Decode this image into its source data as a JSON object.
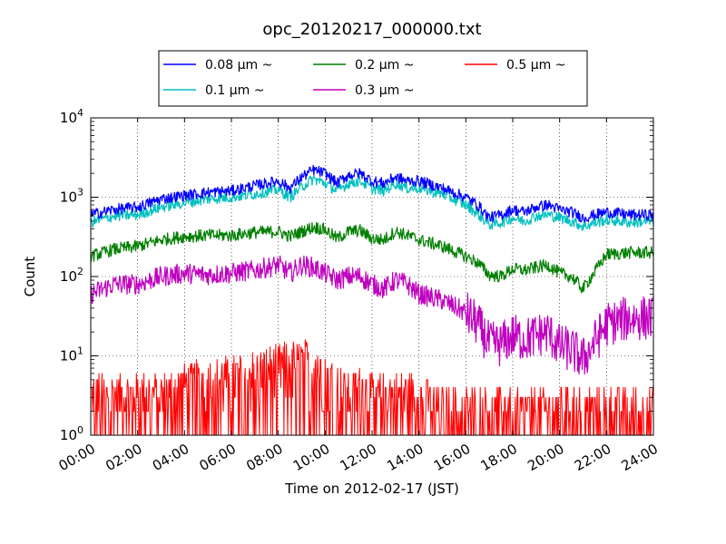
{
  "chart_data": {
    "type": "line",
    "title": "opc_20120217_000000.txt",
    "xlabel": "Time on 2012-02-17 (JST)",
    "ylabel": "Count",
    "yscale": "log",
    "ylim": [
      1,
      10000
    ],
    "xlim": [
      "00:00",
      "24:00"
    ],
    "grid": true,
    "legend_position": "top-center, outside plot",
    "x_ticks": [
      "00:00",
      "02:00",
      "04:00",
      "06:00",
      "08:00",
      "10:00",
      "12:00",
      "14:00",
      "16:00",
      "18:00",
      "20:00",
      "22:00",
      "24:00"
    ],
    "y_ticks": [
      {
        "value": 1,
        "base": "10",
        "exp": "0"
      },
      {
        "value": 10,
        "base": "10",
        "exp": "1"
      },
      {
        "value": 100,
        "base": "10",
        "exp": "2"
      },
      {
        "value": 1000,
        "base": "10",
        "exp": "3"
      },
      {
        "value": 10000,
        "base": "10",
        "exp": "4"
      }
    ],
    "x_hours": [
      0,
      1,
      2,
      3,
      4,
      5,
      6,
      7,
      8,
      8.5,
      9,
      9.5,
      10,
      10.5,
      11,
      11.5,
      12,
      12.5,
      13,
      13.5,
      14,
      15,
      16,
      16.5,
      17,
      17.5,
      18,
      18.5,
      19,
      19.5,
      20,
      20.5,
      21,
      22,
      23,
      24
    ],
    "series": [
      {
        "name": "0.08 μm ~",
        "color": "#0000ff",
        "values": [
          600,
          700,
          750,
          950,
          1050,
          1150,
          1200,
          1400,
          1600,
          1300,
          1800,
          2200,
          2000,
          1500,
          1900,
          2000,
          1600,
          1500,
          1800,
          1600,
          1600,
          1300,
          1000,
          800,
          550,
          600,
          700,
          650,
          750,
          800,
          700,
          650,
          550,
          650,
          600,
          600
        ]
      },
      {
        "name": "0.1 μm ~",
        "color": "#00bfbf",
        "values": [
          480,
          580,
          600,
          750,
          850,
          950,
          1000,
          1100,
          1250,
          1000,
          1350,
          1700,
          1500,
          1200,
          1500,
          1600,
          1300,
          1200,
          1500,
          1300,
          1300,
          1100,
          800,
          620,
          450,
          480,
          550,
          500,
          580,
          600,
          550,
          500,
          430,
          520,
          480,
          500
        ]
      },
      {
        "name": "0.2 μm ~",
        "color": "#007f00",
        "values": [
          180,
          220,
          240,
          290,
          320,
          330,
          330,
          360,
          370,
          320,
          370,
          420,
          390,
          300,
          370,
          380,
          300,
          290,
          370,
          330,
          290,
          240,
          180,
          150,
          105,
          100,
          125,
          120,
          130,
          140,
          110,
          100,
          70,
          190,
          200,
          200
        ]
      },
      {
        "name": "0.3 μm ~",
        "color": "#bf00bf",
        "values": [
          60,
          80,
          80,
          100,
          110,
          105,
          110,
          120,
          140,
          110,
          140,
          130,
          110,
          90,
          100,
          100,
          80,
          70,
          90,
          80,
          60,
          50,
          35,
          25,
          14,
          14,
          18,
          16,
          18,
          20,
          13,
          12,
          9,
          25,
          30,
          30
        ]
      },
      {
        "name": "0.5 μm ~",
        "color": "#ff0000",
        "values": [
          3,
          3,
          3,
          3,
          4,
          5,
          5,
          6,
          7,
          8,
          8,
          8,
          7,
          4,
          3,
          4,
          3,
          3,
          3,
          3,
          3,
          2,
          2,
          2,
          2,
          2,
          2,
          2,
          2,
          2,
          2,
          2,
          2,
          2,
          2,
          2
        ]
      }
    ],
    "legend_order": [
      0,
      2,
      4,
      1,
      3
    ]
  }
}
